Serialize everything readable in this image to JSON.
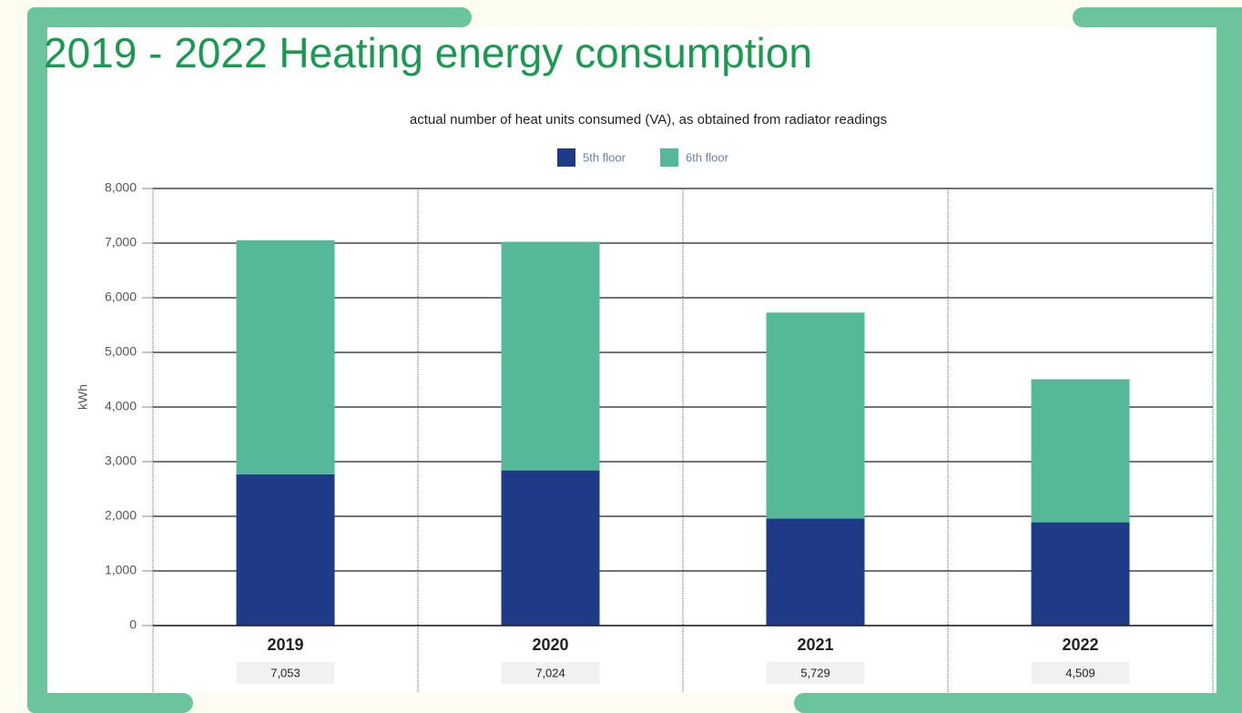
{
  "chart_data": {
    "type": "stacked_bar",
    "title": "2019 - 2022 Heating energy consumption",
    "subtitle": "actual number of heat units consumed (VA), as obtained from radiator readings",
    "y_label": "kWh",
    "categories": [
      "2019",
      "2020",
      "2021",
      "2022"
    ],
    "series": [
      {
        "name": "5th floor",
        "color": "#1f3a87",
        "values": [
          2770,
          2840,
          1960,
          1890
        ]
      },
      {
        "name": "6th floor",
        "color": "#55b999",
        "values": [
          4283,
          4184,
          3769,
          2619
        ]
      }
    ],
    "totals": {
      "values": [
        7053,
        7024,
        5729,
        4509
      ],
      "value_labels": [
        "7,053",
        "7,024",
        "5,729",
        "4,509"
      ]
    },
    "ylim": [
      0,
      8000
    ],
    "yticks": [
      0,
      {
        "value": 1000,
        "label": "1,000"
      },
      {
        "value": 2000,
        "label": "2,000"
      },
      {
        "value": 3000,
        "label": "3,000"
      },
      {
        "value": 4000,
        "label": "4,000"
      },
      {
        "value": 5000,
        "label": "5,000"
      },
      {
        "value": 6000,
        "label": "6,000"
      },
      {
        "value": 7000,
        "label": "7,000"
      },
      {
        "value": 8000,
        "label": "8,000"
      }
    ],
    "grid": true,
    "legend": "top"
  }
}
